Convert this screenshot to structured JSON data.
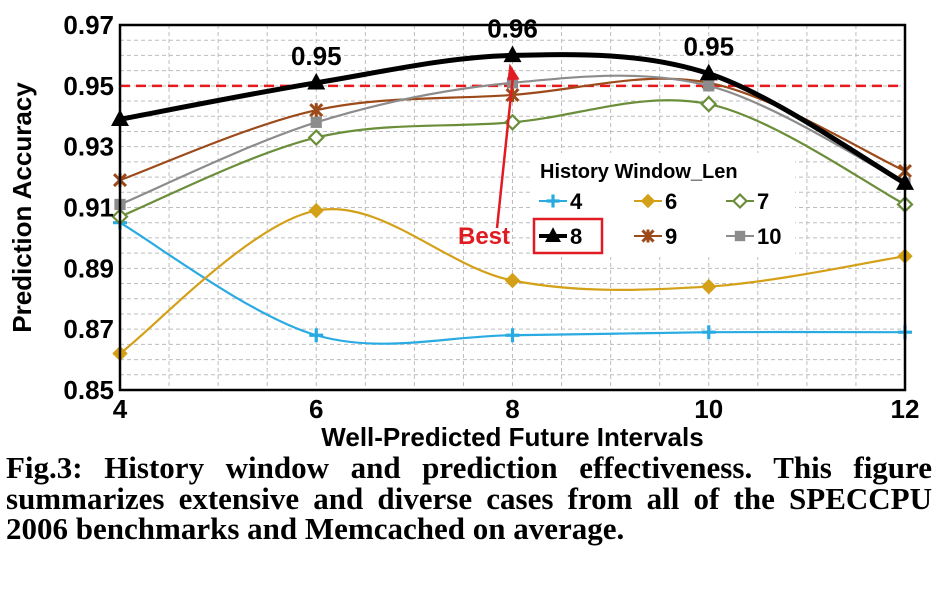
{
  "chart_data": {
    "type": "line",
    "xlabel": "Well-Predicted Future Intervals",
    "ylabel": "Prediction Accuracy",
    "x": [
      4,
      6,
      8,
      10,
      12
    ],
    "xlim": [
      4,
      12
    ],
    "ylim": [
      0.85,
      0.97
    ],
    "y_ticks": [
      "0.85",
      "0.87",
      "0.89",
      "0.91",
      "0.93",
      "0.95",
      "0.97"
    ],
    "x_ticks": [
      "4",
      "6",
      "8",
      "10",
      "12"
    ],
    "grid": true,
    "legend_title": "History Window_Len",
    "legend_position": "center-right",
    "reference_line": {
      "y": 0.95,
      "style": "dashed",
      "color": "#e41a1c"
    },
    "series": [
      {
        "name": "4",
        "values": [
          0.905,
          0.868,
          0.868,
          0.869,
          0.869
        ],
        "color": "#29abe2",
        "marker": "plus"
      },
      {
        "name": "6",
        "values": [
          0.862,
          0.909,
          0.886,
          0.884,
          0.894
        ],
        "color": "#d4a017",
        "marker": "diamond-filled"
      },
      {
        "name": "7",
        "values": [
          0.907,
          0.933,
          0.938,
          0.944,
          0.911
        ],
        "color": "#6b8e3a",
        "marker": "diamond-open"
      },
      {
        "name": "8",
        "values": [
          0.939,
          0.951,
          0.96,
          0.954,
          0.918
        ],
        "color": "#000000",
        "marker": "triangle"
      },
      {
        "name": "9",
        "values": [
          0.919,
          0.942,
          0.947,
          0.951,
          0.922
        ],
        "color": "#9c4a1a",
        "marker": "star"
      },
      {
        "name": "10",
        "values": [
          0.911,
          0.938,
          0.951,
          0.95,
          0.918
        ],
        "color": "#8c8c8c",
        "marker": "square"
      }
    ],
    "annotations": [
      {
        "text": "0.95",
        "x": 6,
        "y": 0.951
      },
      {
        "text": "0.96",
        "x": 8,
        "y": 0.96
      },
      {
        "text": "0.95",
        "x": 10,
        "y": 0.954
      }
    ],
    "best_label": "Best",
    "best_series": "8"
  },
  "caption": "Fig.3: History window and prediction effectiveness. This figure summarizes extensive and diverse cases from all of the SPECCPU 2006 benchmarks and Memcached on average."
}
